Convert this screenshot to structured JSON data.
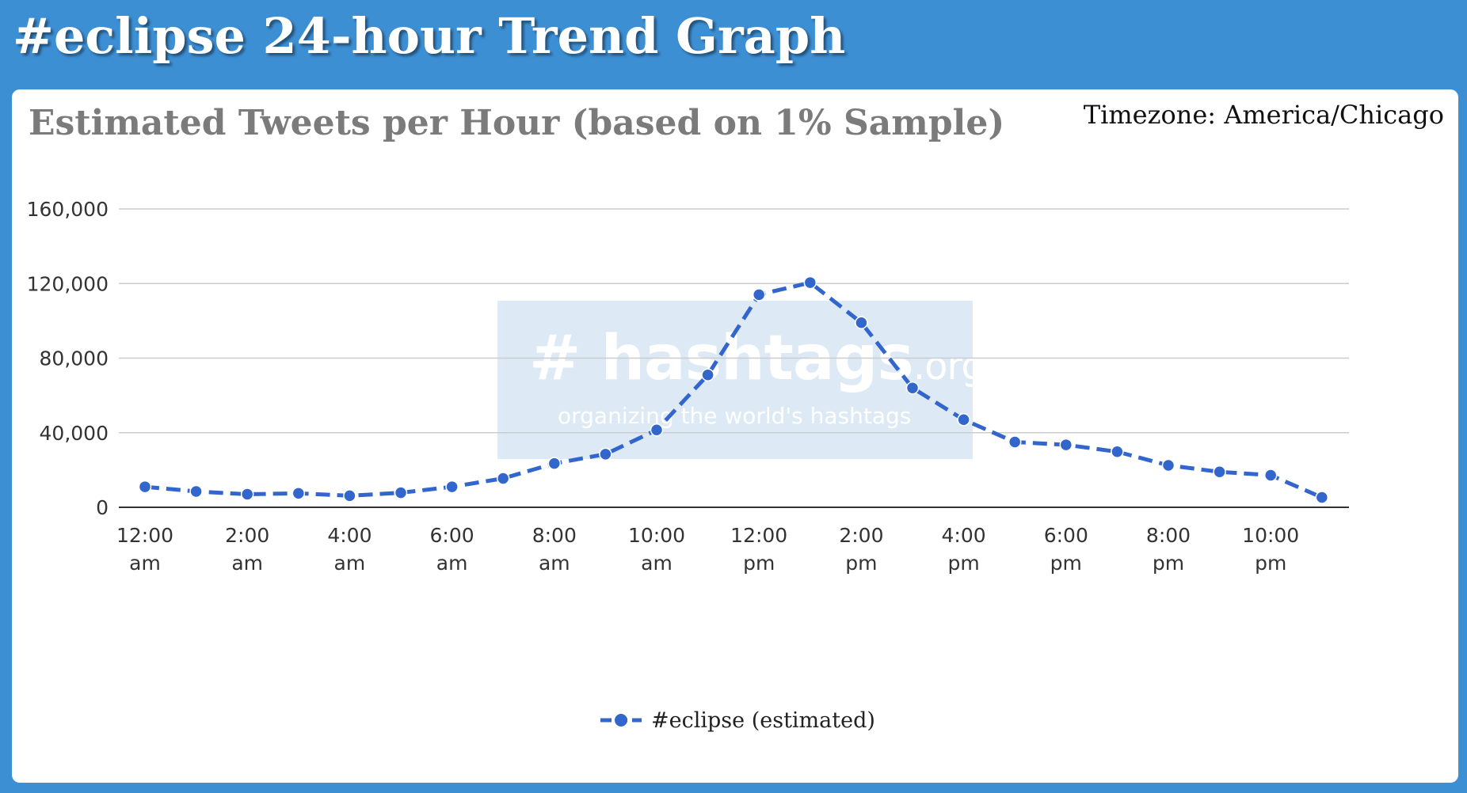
{
  "header": {
    "title": "#eclipse 24-hour Trend Graph"
  },
  "chart_panel": {
    "timezone": "Timezone: America/Chicago"
  },
  "watermark": {
    "brand": "# hashtags",
    "brand_suffix": ".org",
    "tagline": "organizing the world's hashtags"
  },
  "colors": {
    "page_background": "#3d8fd4",
    "panel_background": "#ffffff",
    "series_line": "#3366cc",
    "gridline": "#cccccc",
    "baseline": "#333333",
    "title_gray": "#7b7b7b"
  },
  "chart_data": {
    "type": "line",
    "title": "Estimated Tweets per Hour (based on 1% Sample)",
    "x": [
      "12:00 am",
      "1:00 am",
      "2:00 am",
      "3:00 am",
      "4:00 am",
      "5:00 am",
      "6:00 am",
      "7:00 am",
      "8:00 am",
      "9:00 am",
      "10:00 am",
      "11:00 am",
      "12:00 pm",
      "1:00 pm",
      "2:00 pm",
      "3:00 pm",
      "4:00 pm",
      "5:00 pm",
      "6:00 pm",
      "7:00 pm",
      "8:00 pm",
      "9:00 pm",
      "10:00 pm",
      "11:00 pm"
    ],
    "tick_labels": [
      [
        "12:00",
        "am"
      ],
      [
        "2:00",
        "am"
      ],
      [
        "4:00",
        "am"
      ],
      [
        "6:00",
        "am"
      ],
      [
        "8:00",
        "am"
      ],
      [
        "10:00",
        "am"
      ],
      [
        "12:00",
        "pm"
      ],
      [
        "2:00",
        "pm"
      ],
      [
        "4:00",
        "pm"
      ],
      [
        "6:00",
        "pm"
      ],
      [
        "8:00",
        "pm"
      ],
      [
        "10:00",
        "pm"
      ]
    ],
    "y_ticks": [
      "0",
      "40,000",
      "80,000",
      "120,000",
      "160,000"
    ],
    "ylim": [
      0,
      160000
    ],
    "grid": true,
    "legend_position": "bottom",
    "line_style": "dashed with circle markers",
    "series": [
      {
        "name": "#eclipse (estimated)",
        "values": [
          11000,
          8500,
          7000,
          7500,
          6200,
          7800,
          11000,
          15500,
          23500,
          28500,
          41500,
          71000,
          114000,
          120500,
          99000,
          64000,
          47000,
          35000,
          33500,
          29800,
          22500,
          19000,
          17200,
          5300
        ]
      }
    ]
  }
}
